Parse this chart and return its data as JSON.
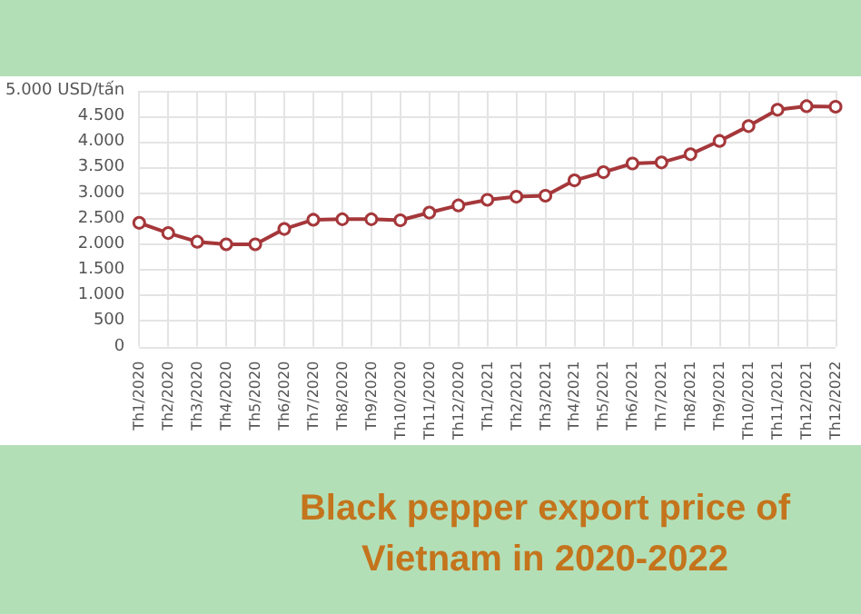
{
  "chart_data": {
    "type": "line",
    "title": "Black pepper export price of Vietnam in 2020-2022",
    "categories": [
      "Th1/2020",
      "Th2/2020",
      "Th3/2020",
      "Th4/2020",
      "Th5/2020",
      "Th6/2020",
      "Th7/2020",
      "Th8/2020",
      "Th9/2020",
      "Th10/2020",
      "Th11/2020",
      "Th12/2020",
      "Th1/2021",
      "Th2/2021",
      "Th3/2021",
      "Th4/2021",
      "Th5/2021",
      "Th6/2021",
      "Th7/2021",
      "Th8/2021",
      "Th9/2021",
      "Th10/2021",
      "Th11/2021",
      "Th12/2021",
      "Th12/2022"
    ],
    "series": [
      {
        "color": "#a5373a",
        "values": [
          2420,
          2220,
          2050,
          2000,
          2000,
          2300,
          2480,
          2490,
          2490,
          2470,
          2620,
          2760,
          2870,
          2930,
          2950,
          3250,
          3410,
          3580,
          3600,
          3760,
          4020,
          4310,
          4630,
          4700,
          4690
        ]
      }
    ],
    "ylim": [
      0,
      5000
    ],
    "yticks": [
      0,
      500,
      {
        "value": 1000,
        "label": "1.000"
      },
      {
        "value": 1500,
        "label": "1.500"
      },
      {
        "value": 2000,
        "label": "2.000"
      },
      {
        "value": 2500,
        "label": "2.500"
      },
      {
        "value": 3000,
        "label": "3.000"
      },
      {
        "value": 3500,
        "label": "3.500"
      },
      {
        "value": 4000,
        "label": "4.000"
      },
      {
        "value": 4500,
        "label": "4.500"
      },
      {
        "value": 5000,
        "label": "5.000 USD/tấn"
      }
    ],
    "grid": true,
    "marker": "circle",
    "line_style": "solid"
  }
}
